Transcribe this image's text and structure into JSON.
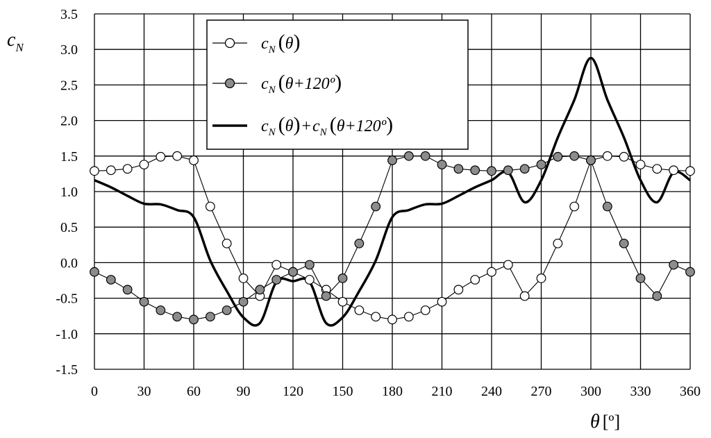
{
  "chart_data": {
    "type": "line",
    "ylabel": "c",
    "ylabel_sub": "N",
    "xlabel": "θ",
    "xlabel_unit": "[º]",
    "xlim": [
      0,
      360
    ],
    "ylim": [
      -1.5,
      3.5
    ],
    "xticks": [
      "0",
      "30",
      "60",
      "90",
      "120",
      "150",
      "180",
      "210",
      "240",
      "270",
      "300",
      "330",
      "360"
    ],
    "yticks": [
      "-1.5",
      "-1.0",
      "-0.5",
      "0.0",
      "0.5",
      "1.0",
      "1.5",
      "2.0",
      "2.5",
      "3.0",
      "3.5"
    ],
    "grid": true,
    "legend_position": "top-center",
    "x": [
      0,
      10,
      20,
      30,
      40,
      50,
      60,
      70,
      80,
      90,
      100,
      110,
      120,
      130,
      140,
      150,
      160,
      170,
      180,
      190,
      200,
      210,
      220,
      230,
      240,
      250,
      260,
      270,
      280,
      290,
      300,
      310,
      320,
      330,
      340,
      350,
      360
    ],
    "series": [
      {
        "legend": {
          "fn": "c",
          "sub": "N",
          "arg": "θ"
        },
        "style": "open-markers",
        "values": [
          1.29,
          1.3,
          1.32,
          1.38,
          1.49,
          1.5,
          1.44,
          0.79,
          0.27,
          -0.22,
          -0.47,
          -0.03,
          -0.13,
          -0.24,
          -0.38,
          -0.55,
          -0.67,
          -0.76,
          -0.8,
          -0.76,
          -0.67,
          -0.55,
          -0.38,
          -0.24,
          -0.13,
          -0.03,
          -0.47,
          -0.22,
          0.27,
          0.79,
          1.44,
          1.5,
          1.49,
          1.38,
          1.32,
          1.3,
          1.29
        ]
      },
      {
        "legend": {
          "fn": "c",
          "sub": "N",
          "arg": "θ+120º"
        },
        "style": "filled-markers",
        "values": [
          -0.13,
          -0.24,
          -0.38,
          -0.55,
          -0.67,
          -0.76,
          -0.8,
          -0.76,
          -0.67,
          -0.55,
          -0.38,
          -0.24,
          -0.13,
          -0.03,
          -0.47,
          -0.22,
          0.27,
          0.79,
          1.44,
          1.5,
          1.5,
          1.38,
          1.32,
          1.3,
          1.29,
          1.3,
          1.32,
          1.38,
          1.49,
          1.5,
          1.44,
          0.79,
          0.27,
          -0.22,
          -0.47,
          -0.03,
          -0.13
        ]
      },
      {
        "legend": {
          "fn": "c",
          "sub": "N",
          "arg": "θ",
          "plus": "+",
          "fn2": "c",
          "sub2": "N",
          "arg2": "θ+120º"
        },
        "style": "thick-line",
        "values": [
          1.16,
          1.06,
          0.94,
          0.83,
          0.82,
          0.74,
          0.64,
          0.03,
          -0.4,
          -0.77,
          -0.85,
          -0.27,
          -0.26,
          -0.27,
          -0.85,
          -0.77,
          -0.4,
          0.03,
          0.64,
          0.74,
          0.82,
          0.83,
          0.94,
          1.06,
          1.16,
          1.27,
          0.85,
          1.16,
          1.76,
          2.29,
          2.88,
          2.29,
          1.76,
          1.16,
          0.85,
          1.27,
          1.16
        ]
      }
    ]
  }
}
